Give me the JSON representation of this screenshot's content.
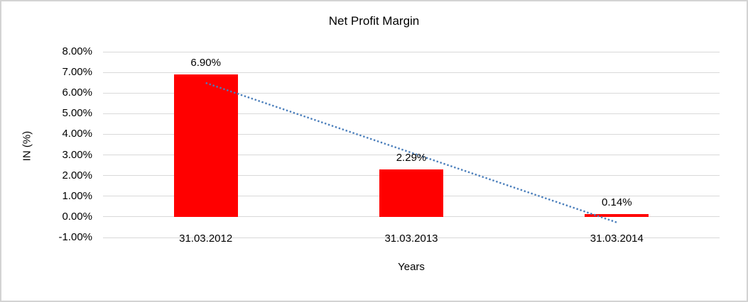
{
  "chart": {
    "title": "Net Profit Margin",
    "colors": {
      "bar": "#ff0000",
      "trendline": "#4a7ebb",
      "gridline": "#d9d9d9",
      "frame_border": "#d3d3d3",
      "text": "#000000",
      "background": "#ffffff"
    }
  },
  "chart_data": {
    "type": "bar",
    "title": "Net Profit Margin",
    "xlabel": "Years",
    "ylabel": "IN (%)",
    "categories": [
      "31.03.2012",
      "31.03.2013",
      "31.03.2014"
    ],
    "values": [
      6.9,
      2.29,
      0.14
    ],
    "data_labels": [
      "6.90%",
      "2.29%",
      "0.14%"
    ],
    "ylim": [
      -1,
      8
    ],
    "ytick_values": [
      8,
      7,
      6,
      5,
      4,
      3,
      2,
      1,
      0,
      -1
    ],
    "ytick_labels": [
      "8.00%",
      "7.00%",
      "6.00%",
      "5.00%",
      "4.00%",
      "3.00%",
      "2.00%",
      "1.00%",
      "0.00%",
      "-1.00%"
    ],
    "grid": true,
    "legend": "none",
    "bar_color": "#ff0000",
    "trendline": {
      "type": "linear",
      "style": "dotted",
      "color": "#4a7ebb",
      "fit_values": [
        6.49,
        -0.27
      ]
    }
  }
}
